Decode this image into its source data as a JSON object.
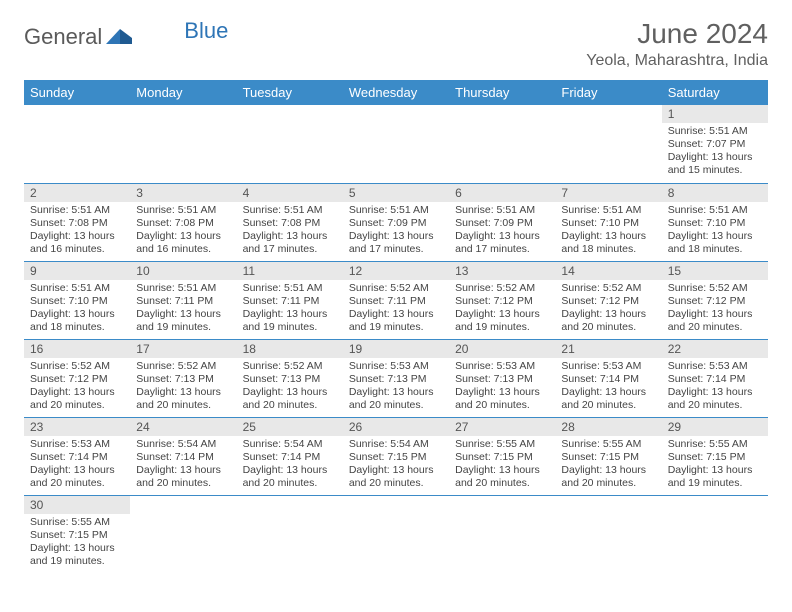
{
  "brand": {
    "part1": "General",
    "part2": "Blue",
    "accent": "#2e75b6",
    "text_color": "#5a5a5a"
  },
  "title": "June 2024",
  "location": "Yeola, Maharashtra, India",
  "colors": {
    "header_bg": "#3b8bc8",
    "header_fg": "#ffffff",
    "daynum_bg": "#e8e8e8",
    "row_border": "#3b8bc8",
    "body_text": "#444444",
    "title_color": "#606060"
  },
  "day_headers": [
    "Sunday",
    "Monday",
    "Tuesday",
    "Wednesday",
    "Thursday",
    "Friday",
    "Saturday"
  ],
  "weeks": [
    [
      null,
      null,
      null,
      null,
      null,
      null,
      {
        "n": "1",
        "sr": "5:51 AM",
        "ss": "7:07 PM",
        "dl": "13 hours and 15 minutes."
      }
    ],
    [
      {
        "n": "2",
        "sr": "5:51 AM",
        "ss": "7:08 PM",
        "dl": "13 hours and 16 minutes."
      },
      {
        "n": "3",
        "sr": "5:51 AM",
        "ss": "7:08 PM",
        "dl": "13 hours and 16 minutes."
      },
      {
        "n": "4",
        "sr": "5:51 AM",
        "ss": "7:08 PM",
        "dl": "13 hours and 17 minutes."
      },
      {
        "n": "5",
        "sr": "5:51 AM",
        "ss": "7:09 PM",
        "dl": "13 hours and 17 minutes."
      },
      {
        "n": "6",
        "sr": "5:51 AM",
        "ss": "7:09 PM",
        "dl": "13 hours and 17 minutes."
      },
      {
        "n": "7",
        "sr": "5:51 AM",
        "ss": "7:10 PM",
        "dl": "13 hours and 18 minutes."
      },
      {
        "n": "8",
        "sr": "5:51 AM",
        "ss": "7:10 PM",
        "dl": "13 hours and 18 minutes."
      }
    ],
    [
      {
        "n": "9",
        "sr": "5:51 AM",
        "ss": "7:10 PM",
        "dl": "13 hours and 18 minutes."
      },
      {
        "n": "10",
        "sr": "5:51 AM",
        "ss": "7:11 PM",
        "dl": "13 hours and 19 minutes."
      },
      {
        "n": "11",
        "sr": "5:51 AM",
        "ss": "7:11 PM",
        "dl": "13 hours and 19 minutes."
      },
      {
        "n": "12",
        "sr": "5:52 AM",
        "ss": "7:11 PM",
        "dl": "13 hours and 19 minutes."
      },
      {
        "n": "13",
        "sr": "5:52 AM",
        "ss": "7:12 PM",
        "dl": "13 hours and 19 minutes."
      },
      {
        "n": "14",
        "sr": "5:52 AM",
        "ss": "7:12 PM",
        "dl": "13 hours and 20 minutes."
      },
      {
        "n": "15",
        "sr": "5:52 AM",
        "ss": "7:12 PM",
        "dl": "13 hours and 20 minutes."
      }
    ],
    [
      {
        "n": "16",
        "sr": "5:52 AM",
        "ss": "7:12 PM",
        "dl": "13 hours and 20 minutes."
      },
      {
        "n": "17",
        "sr": "5:52 AM",
        "ss": "7:13 PM",
        "dl": "13 hours and 20 minutes."
      },
      {
        "n": "18",
        "sr": "5:52 AM",
        "ss": "7:13 PM",
        "dl": "13 hours and 20 minutes."
      },
      {
        "n": "19",
        "sr": "5:53 AM",
        "ss": "7:13 PM",
        "dl": "13 hours and 20 minutes."
      },
      {
        "n": "20",
        "sr": "5:53 AM",
        "ss": "7:13 PM",
        "dl": "13 hours and 20 minutes."
      },
      {
        "n": "21",
        "sr": "5:53 AM",
        "ss": "7:14 PM",
        "dl": "13 hours and 20 minutes."
      },
      {
        "n": "22",
        "sr": "5:53 AM",
        "ss": "7:14 PM",
        "dl": "13 hours and 20 minutes."
      }
    ],
    [
      {
        "n": "23",
        "sr": "5:53 AM",
        "ss": "7:14 PM",
        "dl": "13 hours and 20 minutes."
      },
      {
        "n": "24",
        "sr": "5:54 AM",
        "ss": "7:14 PM",
        "dl": "13 hours and 20 minutes."
      },
      {
        "n": "25",
        "sr": "5:54 AM",
        "ss": "7:14 PM",
        "dl": "13 hours and 20 minutes."
      },
      {
        "n": "26",
        "sr": "5:54 AM",
        "ss": "7:15 PM",
        "dl": "13 hours and 20 minutes."
      },
      {
        "n": "27",
        "sr": "5:55 AM",
        "ss": "7:15 PM",
        "dl": "13 hours and 20 minutes."
      },
      {
        "n": "28",
        "sr": "5:55 AM",
        "ss": "7:15 PM",
        "dl": "13 hours and 20 minutes."
      },
      {
        "n": "29",
        "sr": "5:55 AM",
        "ss": "7:15 PM",
        "dl": "13 hours and 19 minutes."
      }
    ],
    [
      {
        "n": "30",
        "sr": "5:55 AM",
        "ss": "7:15 PM",
        "dl": "13 hours and 19 minutes."
      },
      null,
      null,
      null,
      null,
      null,
      null
    ]
  ],
  "labels": {
    "sunrise": "Sunrise:",
    "sunset": "Sunset:",
    "daylight": "Daylight:"
  }
}
